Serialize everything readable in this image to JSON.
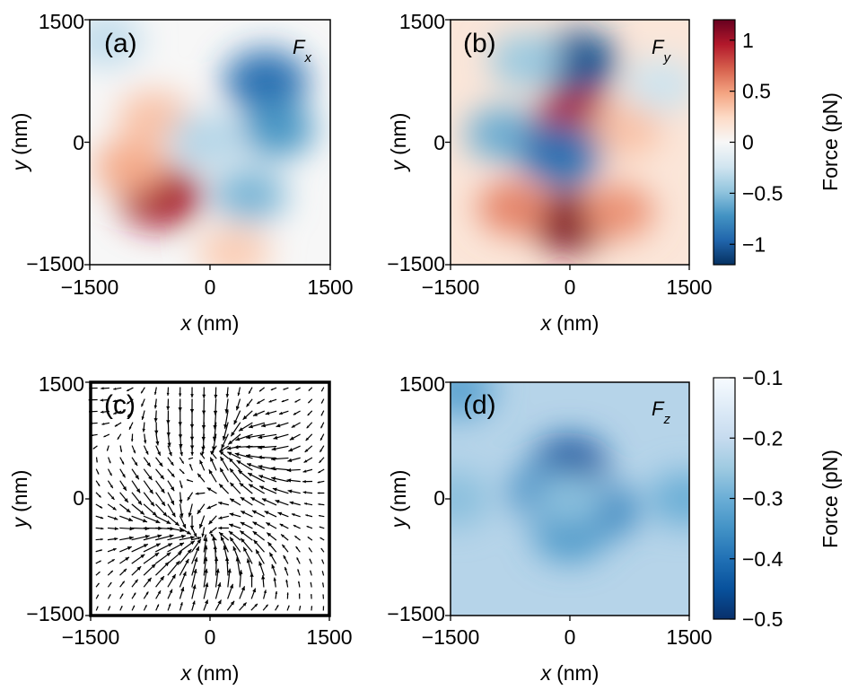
{
  "chart_data": [
    {
      "type": "heatmap",
      "panel": "(a)",
      "component_symbol": "F",
      "component_sub": "x",
      "xlabel_var": "x",
      "xlabel_unit": "(nm)",
      "ylabel_var": "y",
      "ylabel_unit": "(nm)",
      "xlim": [
        -1500,
        1500
      ],
      "ylim": [
        -1500,
        1500
      ],
      "xticks": [
        "−1500",
        "0",
        "1500"
      ],
      "yticks": [
        "1500",
        "0",
        "−1500"
      ],
      "colormap": "RdBu_r",
      "clim": [
        -1.2,
        1.2
      ],
      "features": [
        {
          "x": -620,
          "y": -660,
          "value": 1.0
        },
        {
          "x": -1000,
          "y": -300,
          "value": 0.45
        },
        {
          "x": -700,
          "y": 300,
          "value": 0.35
        },
        {
          "x": 300,
          "y": -1350,
          "value": 0.3
        },
        {
          "x": 700,
          "y": 750,
          "value": -0.9
        },
        {
          "x": 850,
          "y": 150,
          "value": -0.7
        },
        {
          "x": 500,
          "y": -650,
          "value": -0.55
        },
        {
          "x": -50,
          "y": 30,
          "value": -0.35
        },
        {
          "x": -1300,
          "y": 1250,
          "value": -0.3
        }
      ]
    },
    {
      "type": "heatmap",
      "panel": "(b)",
      "component_symbol": "F",
      "component_sub": "y",
      "xlabel_var": "x",
      "xlabel_unit": "(nm)",
      "ylabel_var": "y",
      "ylabel_unit": "(nm)",
      "xlim": [
        -1500,
        1500
      ],
      "ylim": [
        -1500,
        1500
      ],
      "xticks": [
        "−1500",
        "0",
        "1500"
      ],
      "yticks": [
        "1500",
        "0",
        "−1500"
      ],
      "colormap": "RdBu_r",
      "clim": [
        -1.2,
        1.2
      ],
      "features": [
        {
          "x": 0,
          "y": -960,
          "value": 1.15
        },
        {
          "x": -700,
          "y": -800,
          "value": 0.6
        },
        {
          "x": 600,
          "y": -850,
          "value": 0.55
        },
        {
          "x": 80,
          "y": 280,
          "value": 0.95
        },
        {
          "x": 700,
          "y": 150,
          "value": 0.35
        },
        {
          "x": 80,
          "y": 980,
          "value": -1.05
        },
        {
          "x": -550,
          "y": 1000,
          "value": -0.45
        },
        {
          "x": -850,
          "y": 100,
          "value": -0.6
        },
        {
          "x": -120,
          "y": -150,
          "value": -0.9
        },
        {
          "x": 1150,
          "y": 700,
          "value": -0.25
        }
      ]
    },
    {
      "type": "quiver",
      "panel": "(c)",
      "xlim": [
        -1500,
        1500
      ],
      "ylim": [
        -1500,
        1500
      ],
      "xticks": [
        "−1500",
        "0",
        "1500"
      ],
      "yticks": [
        "1500",
        "0",
        "−1500"
      ],
      "xlabel_var": "x",
      "xlabel_unit": "(nm)",
      "ylabel_var": "y",
      "ylabel_unit": "(nm)",
      "grid_points": 20,
      "description_vector_field": "in-plane force (Fx, Fy) sampled on a 20x20 grid"
    },
    {
      "type": "heatmap",
      "panel": "(d)",
      "component_symbol": "F",
      "component_sub": "z",
      "xlabel_var": "x",
      "xlabel_unit": "(nm)",
      "ylabel_var": "y",
      "ylabel_unit": "(nm)",
      "xlim": [
        -1500,
        1500
      ],
      "ylim": [
        -1500,
        1500
      ],
      "xticks": [
        "−1500",
        "0",
        "1500"
      ],
      "yticks": [
        "1500",
        "0",
        "−1500"
      ],
      "colormap": "Blues_r",
      "clim": [
        -0.5,
        -0.1
      ],
      "background_value": -0.22,
      "features": [
        {
          "x": 0,
          "y": 450,
          "value": -0.45
        },
        {
          "x": -300,
          "y": 100,
          "value": -0.36
        },
        {
          "x": 400,
          "y": -150,
          "value": -0.37
        },
        {
          "x": 0,
          "y": -450,
          "value": -0.34
        },
        {
          "x": 1450,
          "y": 0,
          "value": -0.3
        },
        {
          "x": -1450,
          "y": 0,
          "value": -0.27
        },
        {
          "x": -1400,
          "y": 1400,
          "value": -0.32
        },
        {
          "x": 0,
          "y": 0,
          "value": -0.27
        }
      ]
    }
  ],
  "colorbars": [
    {
      "for": "top",
      "label": "Force (pN)",
      "range": [
        -1.2,
        1.2
      ],
      "ticks": [
        1,
        0.5,
        0,
        -0.5,
        -1
      ],
      "tick_labels": [
        "1",
        "0.5",
        "0",
        "−0.5",
        "−1"
      ],
      "colors": [
        "#67001f",
        "#b2182b",
        "#d6604d",
        "#f4a582",
        "#fddbc7",
        "#f7f7f7",
        "#d1e5f0",
        "#92c5de",
        "#4393c3",
        "#2166ac",
        "#053061"
      ]
    },
    {
      "for": "bottom",
      "label": "Force (pN)",
      "range": [
        -0.5,
        -0.1
      ],
      "ticks": [
        -0.1,
        -0.2,
        -0.3,
        -0.4,
        -0.5
      ],
      "tick_labels": [
        "−0.1",
        "−0.2",
        "−0.3",
        "−0.4",
        "−0.5"
      ],
      "colors": [
        "#f7fbff",
        "#deebf7",
        "#c6dbef",
        "#9ecae1",
        "#6baed6",
        "#4292c6",
        "#2171b5",
        "#08519c",
        "#08306b"
      ]
    }
  ]
}
